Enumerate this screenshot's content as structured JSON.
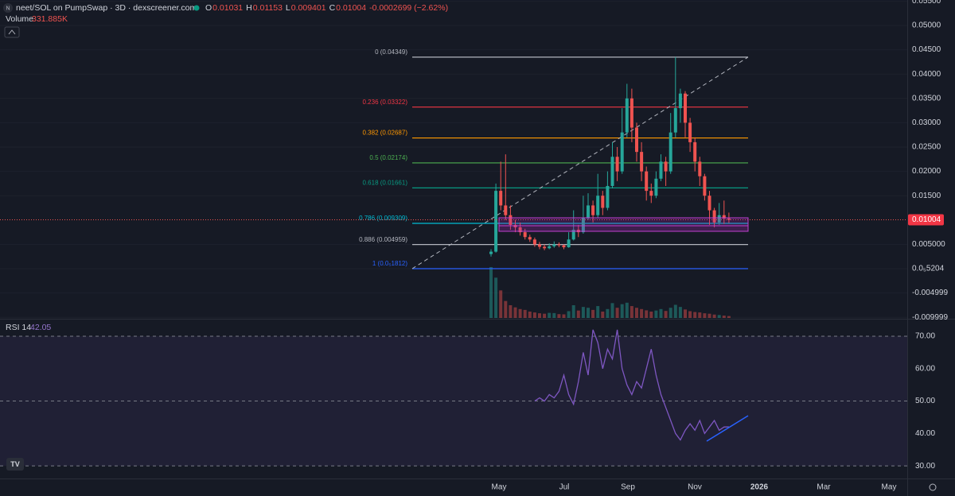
{
  "header": {
    "title": "neet/SOL on PumpSwap · 3D · dexscreener.com",
    "ohlc": [
      {
        "key": "O",
        "value": "0.01031"
      },
      {
        "key": "H",
        "value": "0.01153"
      },
      {
        "key": "L",
        "value": "0.009401"
      },
      {
        "key": "C",
        "value": "0.01004"
      }
    ],
    "change": "-0.0002699 (−2.62%)",
    "volume_label": "Volume",
    "volume_value": "331.885K",
    "rsi_label": "RSI 14",
    "rsi_value": "42.05"
  },
  "chart_data": {
    "type": "candlestick",
    "ylim": [
      -0.01013,
      0.05523
    ],
    "yticks": [
      {
        "value": 0.055,
        "label": "0.05500"
      },
      {
        "value": 0.05,
        "label": "0.05000"
      },
      {
        "value": 0.045,
        "label": "0.04500"
      },
      {
        "value": 0.04,
        "label": "0.04000"
      },
      {
        "value": 0.035,
        "label": "0.03500"
      },
      {
        "value": 0.03,
        "label": "0.03000"
      },
      {
        "value": 0.025,
        "label": "0.02500"
      },
      {
        "value": 0.02,
        "label": "0.02000"
      },
      {
        "value": 0.015,
        "label": "0.01500"
      },
      {
        "value": 0.005,
        "label": "0.005000"
      },
      {
        "value": 5.204e-06,
        "label": "0.0₅5204"
      },
      {
        "value": -0.004999,
        "label": "-0.004999"
      },
      {
        "value": -0.009999,
        "label": "-0.009999"
      }
    ],
    "time_axis": [
      "May",
      "Jul",
      "Sep",
      "Nov",
      "2026",
      "Mar",
      "May"
    ],
    "up_color": "#26a69a",
    "down_color": "#ef5350",
    "candles": [
      [
        0.003,
        0.004,
        0.0025,
        0.0035
      ],
      [
        0.0035,
        0.0175,
        0.0033,
        0.016
      ],
      [
        0.016,
        0.022,
        0.012,
        0.013
      ],
      [
        0.013,
        0.0235,
        0.01,
        0.011
      ],
      [
        0.011,
        0.013,
        0.008,
        0.009
      ],
      [
        0.009,
        0.01,
        0.0075,
        0.0085
      ],
      [
        0.0085,
        0.0095,
        0.0068,
        0.0075
      ],
      [
        0.0075,
        0.0082,
        0.006,
        0.0065
      ],
      [
        0.0065,
        0.007,
        0.0055,
        0.006
      ],
      [
        0.006,
        0.0064,
        0.0045,
        0.005
      ],
      [
        0.005,
        0.0055,
        0.004,
        0.0045
      ],
      [
        0.0045,
        0.005,
        0.0038,
        0.0042
      ],
      [
        0.0042,
        0.0052,
        0.004,
        0.0046
      ],
      [
        0.0046,
        0.0056,
        0.0043,
        0.005
      ],
      [
        0.005,
        0.0054,
        0.0044,
        0.0048
      ],
      [
        0.0048,
        0.005,
        0.004,
        0.0044
      ],
      [
        0.0044,
        0.0075,
        0.0043,
        0.006
      ],
      [
        0.006,
        0.012,
        0.0058,
        0.008
      ],
      [
        0.008,
        0.009,
        0.0065,
        0.0075
      ],
      [
        0.0075,
        0.015,
        0.0072,
        0.0105
      ],
      [
        0.0105,
        0.0155,
        0.01,
        0.013
      ],
      [
        0.013,
        0.014,
        0.0095,
        0.011
      ],
      [
        0.011,
        0.0195,
        0.0105,
        0.015
      ],
      [
        0.015,
        0.016,
        0.011,
        0.0125
      ],
      [
        0.0125,
        0.02,
        0.012,
        0.017
      ],
      [
        0.017,
        0.026,
        0.0165,
        0.023
      ],
      [
        0.023,
        0.025,
        0.018,
        0.02
      ],
      [
        0.02,
        0.033,
        0.0195,
        0.028
      ],
      [
        0.028,
        0.038,
        0.027,
        0.035
      ],
      [
        0.035,
        0.037,
        0.026,
        0.029
      ],
      [
        0.029,
        0.03,
        0.022,
        0.024
      ],
      [
        0.024,
        0.026,
        0.018,
        0.02
      ],
      [
        0.02,
        0.021,
        0.014,
        0.016
      ],
      [
        0.016,
        0.0175,
        0.0135,
        0.015
      ],
      [
        0.015,
        0.02,
        0.0145,
        0.0185
      ],
      [
        0.0185,
        0.0235,
        0.018,
        0.022
      ],
      [
        0.022,
        0.023,
        0.017,
        0.02
      ],
      [
        0.02,
        0.032,
        0.0195,
        0.028
      ],
      [
        0.028,
        0.0435,
        0.027,
        0.033
      ],
      [
        0.033,
        0.037,
        0.03,
        0.036
      ],
      [
        0.036,
        0.0365,
        0.027,
        0.03
      ],
      [
        0.03,
        0.031,
        0.024,
        0.026
      ],
      [
        0.026,
        0.027,
        0.02,
        0.022
      ],
      [
        0.022,
        0.023,
        0.017,
        0.019
      ],
      [
        0.019,
        0.0195,
        0.014,
        0.015
      ],
      [
        0.015,
        0.016,
        0.009,
        0.012
      ],
      [
        0.012,
        0.0125,
        0.0085,
        0.0095
      ],
      [
        0.0095,
        0.0135,
        0.009,
        0.011
      ],
      [
        0.011,
        0.014,
        0.0092,
        0.01031
      ],
      [
        0.01031,
        0.01153,
        0.009401,
        0.01004
      ]
    ],
    "volume": [
      2400,
      1900,
      1300,
      800,
      600,
      500,
      420,
      380,
      300,
      260,
      220,
      200,
      240,
      230,
      180,
      170,
      320,
      600,
      350,
      520,
      480,
      380,
      560,
      300,
      420,
      700,
      480,
      650,
      720,
      560,
      480,
      420,
      360,
      300,
      350,
      420,
      330,
      480,
      620,
      520,
      400,
      320,
      280,
      260,
      220,
      200,
      160,
      140,
      110,
      90
    ],
    "fib_levels": [
      {
        "label": "0 (0.04349)",
        "value": 0.04349,
        "color": "#b2b5be"
      },
      {
        "label": "0.236 (0.03322)",
        "value": 0.03322,
        "color": "#f23645"
      },
      {
        "label": "0.382 (0.02687)",
        "value": 0.02687,
        "color": "#ff9800"
      },
      {
        "label": "0.5 (0.02174)",
        "value": 0.02174,
        "color": "#4caf50"
      },
      {
        "label": "0.618 (0.01661)",
        "value": 0.01661,
        "color": "#089981"
      },
      {
        "label": "0.786 (0.009309)",
        "value": 0.009309,
        "color": "#00bcd4"
      },
      {
        "label": "0.886 (0.004959)",
        "value": 0.004959,
        "color": "#b2b5be"
      },
      {
        "label": "1 (0.0₅1812)",
        "value": 1.812e-06,
        "color": "#2962ff"
      }
    ],
    "rsi": {
      "color": "#7e57c2",
      "ylim": [
        26.6,
        74.9
      ],
      "yticks": [
        {
          "value": 70,
          "label": "70.00"
        },
        {
          "value": 60,
          "label": "60.00"
        },
        {
          "value": 50,
          "label": "50.00"
        },
        {
          "value": 40,
          "label": "40.00"
        },
        {
          "value": 30,
          "label": "30.00"
        }
      ],
      "levels": [
        70,
        50,
        30
      ],
      "values": [
        null,
        null,
        null,
        null,
        null,
        null,
        null,
        null,
        null,
        50,
        51,
        50,
        52,
        51,
        53,
        58,
        52,
        49,
        56,
        65,
        58,
        72,
        68,
        60,
        66,
        63,
        72,
        60,
        55,
        52,
        56,
        54,
        60,
        66,
        58,
        52,
        48,
        44,
        40,
        38,
        41,
        43,
        41,
        44,
        40,
        42,
        44,
        41,
        42,
        42.05
      ]
    }
  }
}
